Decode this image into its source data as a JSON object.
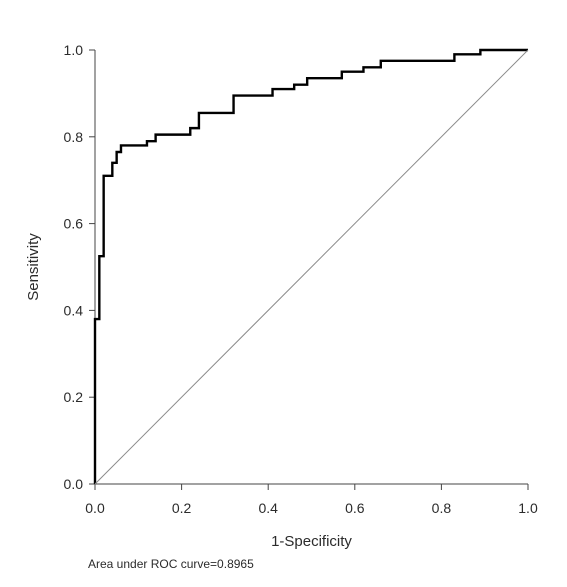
{
  "chart_data": {
    "type": "line",
    "title": "",
    "xlabel": "1-Specificity",
    "ylabel": "Sensitivity",
    "xlim": [
      0,
      1
    ],
    "ylim": [
      0,
      1
    ],
    "x_ticks": [
      "0.0",
      "0.2",
      "0.4",
      "0.6",
      "0.8",
      "1.0"
    ],
    "y_ticks": [
      "0.0",
      "0.2",
      "0.4",
      "0.6",
      "0.8",
      "1.0"
    ],
    "grid": false,
    "legend": "none",
    "annotation": "Area under ROC curve=0.8965",
    "series": [
      {
        "color": "#000000",
        "x": [
          0.0,
          0.0,
          0.005,
          0.005,
          0.01,
          0.01,
          0.02,
          0.02,
          0.04,
          0.04,
          0.05,
          0.05,
          0.06,
          0.06,
          0.12,
          0.12,
          0.14,
          0.14,
          0.22,
          0.22,
          0.24,
          0.24,
          0.32,
          0.32,
          0.41,
          0.41,
          0.46,
          0.46,
          0.49,
          0.49,
          0.57,
          0.57,
          0.62,
          0.62,
          0.66,
          0.66,
          0.83,
          0.83,
          0.89,
          0.89,
          1.0
        ],
        "y": [
          0.0,
          0.38,
          0.38,
          0.38,
          0.38,
          0.525,
          0.525,
          0.71,
          0.71,
          0.74,
          0.74,
          0.765,
          0.765,
          0.78,
          0.78,
          0.79,
          0.79,
          0.805,
          0.805,
          0.82,
          0.82,
          0.855,
          0.855,
          0.895,
          0.895,
          0.91,
          0.91,
          0.92,
          0.92,
          0.935,
          0.935,
          0.95,
          0.95,
          0.96,
          0.96,
          0.975,
          0.975,
          0.99,
          0.99,
          1.0,
          1.0
        ]
      },
      {
        "color": "#8a8a8a",
        "x": [
          0.0,
          1.0
        ],
        "y": [
          0.0,
          1.0
        ]
      }
    ]
  }
}
